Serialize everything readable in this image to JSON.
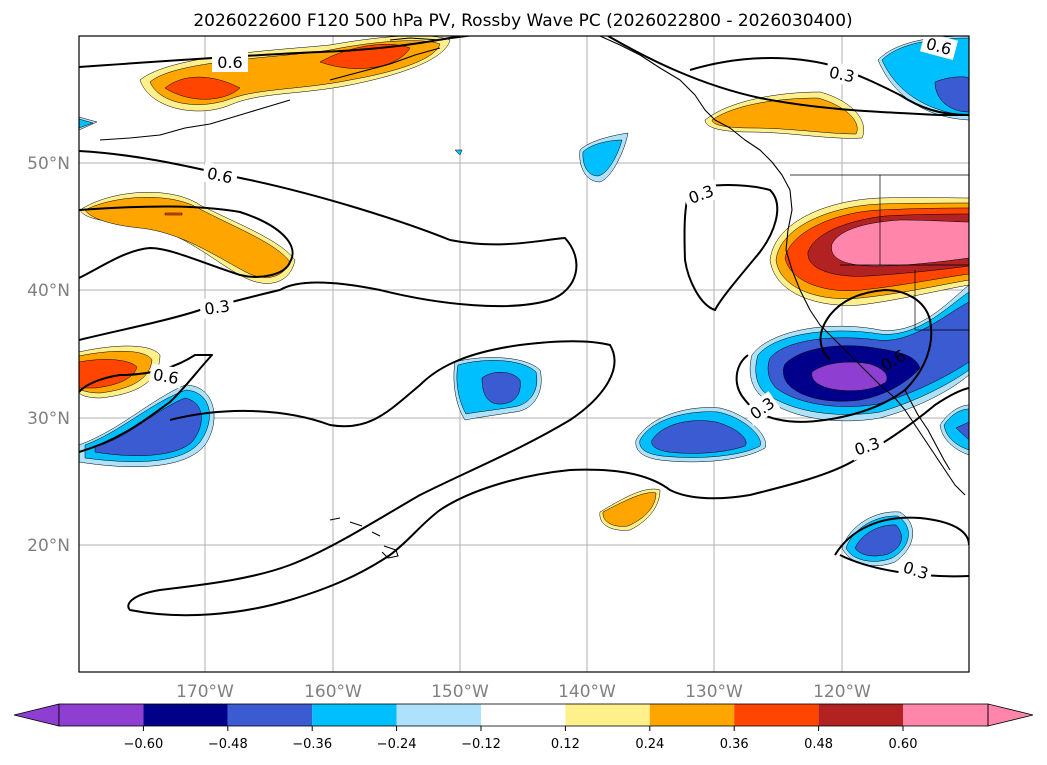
{
  "title": "2026022600 F120 500 hPa PV, Rossby Wave PC (2026022800 - 2026030400)",
  "colors": {
    "neg_060": "#8e3fd1",
    "neg_048": "#00008b",
    "neg_036": "#3a5bd1",
    "neg_024": "#00bfff",
    "neg_012": "#aee2fa",
    "zero": "#ffffff",
    "pos_012": "#fff08c",
    "pos_024": "#ffa500",
    "pos_036": "#ff4500",
    "pos_048": "#b22222",
    "pos_060": "#ff85aa"
  },
  "lat_labels": [
    "50°N",
    "40°N",
    "30°N",
    "20°N"
  ],
  "lon_labels": [
    "170°W",
    "160°W",
    "150°W",
    "140°W",
    "130°W",
    "120°W"
  ],
  "colorbar": {
    "ticks": [
      "−0.60",
      "−0.48",
      "−0.36",
      "−0.24",
      "−0.12",
      "0.12",
      "0.24",
      "0.36",
      "0.48",
      "0.60"
    ]
  },
  "contour_labels": {
    "l1": "0.6",
    "l2": "0.3",
    "l3": "0.6",
    "l4": "0.3",
    "l5": "0.3",
    "l6": "0.6",
    "l7": "0.6",
    "l8": "0.3",
    "l9": "0.3",
    "l10": "0.3",
    "l11": "0.6"
  },
  "chart_data": {
    "type": "map",
    "title": "2026022600 F120 500 hPa PV, Rossby Wave PC (2026022800 - 2026030400)",
    "extent": {
      "lon": [
        -180,
        -110
      ],
      "lat": [
        10,
        60
      ]
    },
    "filled_levels": [
      -0.6,
      -0.48,
      -0.36,
      -0.24,
      -0.12,
      0.12,
      0.24,
      0.36,
      0.48,
      0.6
    ],
    "contour_levels": [
      0.3,
      0.6
    ]
  }
}
